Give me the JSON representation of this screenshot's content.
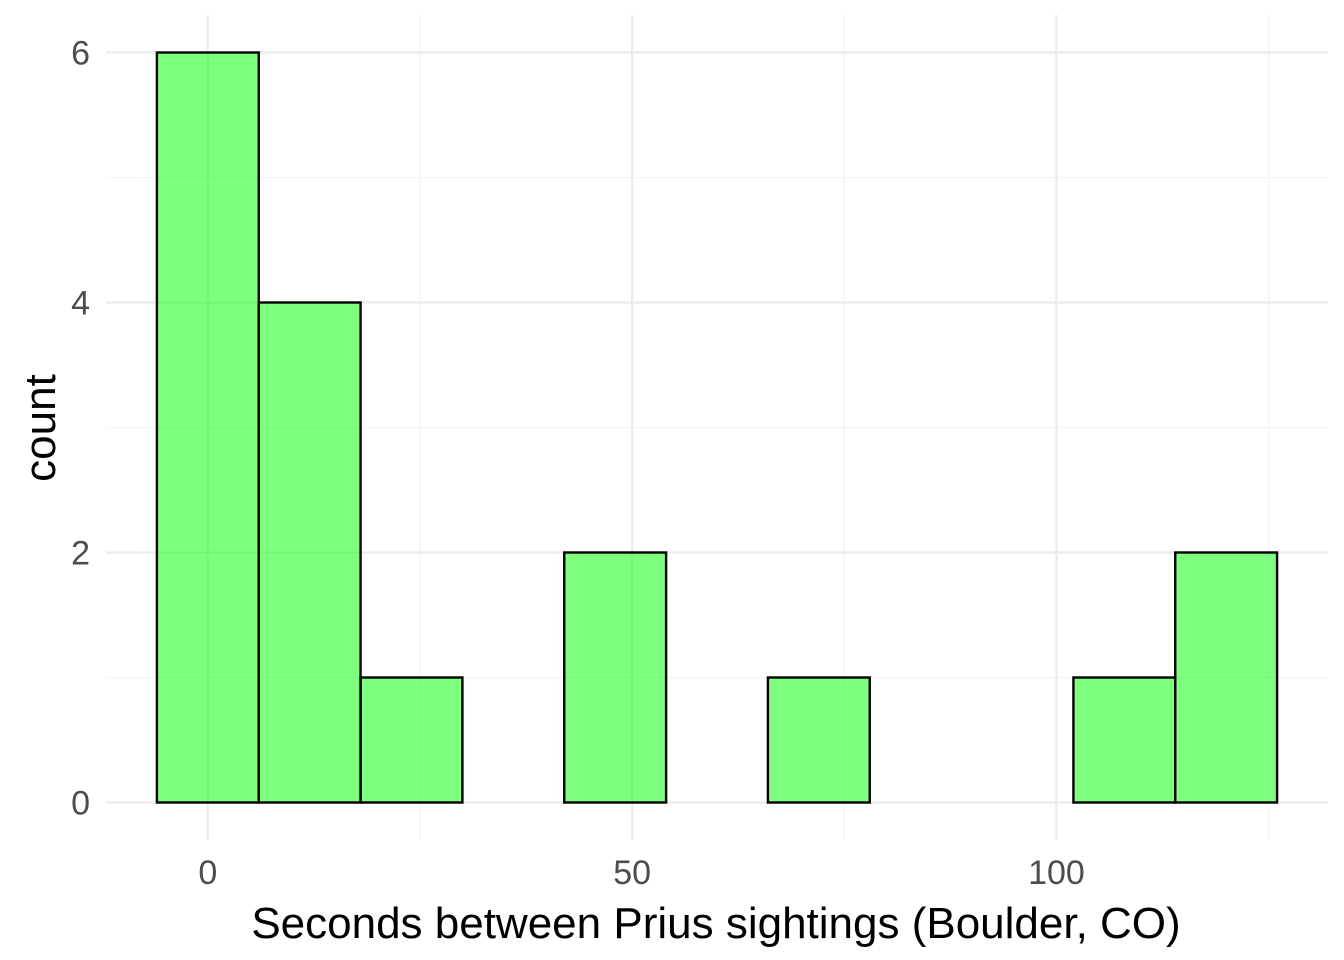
{
  "chart_data": {
    "type": "bar",
    "subtype": "histogram",
    "title": "",
    "xlabel": "Seconds between Prius sightings (Boulder, CO)",
    "ylabel": "count",
    "bin_width": 12,
    "bins": [
      {
        "x0": -6,
        "x1": 6,
        "count": 6
      },
      {
        "x0": 6,
        "x1": 18,
        "count": 4
      },
      {
        "x0": 18,
        "x1": 30,
        "count": 1
      },
      {
        "x0": 30,
        "x1": 42,
        "count": 0
      },
      {
        "x0": 42,
        "x1": 54,
        "count": 2
      },
      {
        "x0": 54,
        "x1": 66,
        "count": 0
      },
      {
        "x0": 66,
        "x1": 78,
        "count": 1
      },
      {
        "x0": 78,
        "x1": 90,
        "count": 0
      },
      {
        "x0": 90,
        "x1": 102,
        "count": 0
      },
      {
        "x0": 102,
        "x1": 114,
        "count": 1
      },
      {
        "x0": 114,
        "x1": 126,
        "count": 2
      }
    ],
    "xlim": [
      -12,
      132
    ],
    "ylim": [
      -0.3,
      6.3
    ],
    "x_ticks": [
      0,
      50,
      100
    ],
    "x_tick_labels": [
      "0",
      "50",
      "100"
    ],
    "x_minor_ticks": [
      25,
      75,
      125
    ],
    "y_ticks": [
      0,
      2,
      4,
      6
    ],
    "y_tick_labels": [
      "0",
      "2",
      "4",
      "6"
    ],
    "y_minor_ticks": [
      1,
      3,
      5
    ],
    "grid": true,
    "legend": "none",
    "colors": {
      "bar_fill": "#00ff00",
      "bar_fill_opacity": 0.5,
      "bar_outline": "#000000",
      "grid": "#ebebeb"
    }
  }
}
